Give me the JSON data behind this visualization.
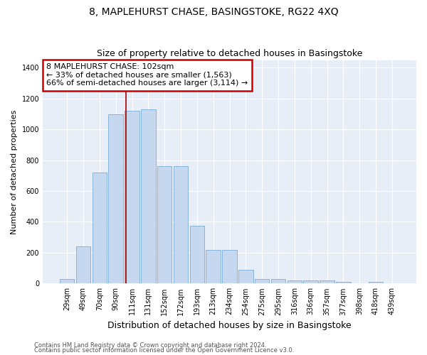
{
  "title": "8, MAPLEHURST CHASE, BASINGSTOKE, RG22 4XQ",
  "subtitle": "Size of property relative to detached houses in Basingstoke",
  "xlabel": "Distribution of detached houses by size in Basingstoke",
  "ylabel": "Number of detached properties",
  "categories": [
    "29sqm",
    "49sqm",
    "70sqm",
    "90sqm",
    "111sqm",
    "131sqm",
    "152sqm",
    "172sqm",
    "193sqm",
    "213sqm",
    "234sqm",
    "254sqm",
    "275sqm",
    "295sqm",
    "316sqm",
    "336sqm",
    "357sqm",
    "377sqm",
    "398sqm",
    "418sqm",
    "439sqm"
  ],
  "values": [
    28,
    240,
    720,
    1100,
    1120,
    1130,
    760,
    760,
    375,
    220,
    220,
    90,
    30,
    30,
    20,
    20,
    20,
    10,
    0,
    10,
    0
  ],
  "bar_color": "#c5d8f0",
  "bar_edgecolor": "#7aadd6",
  "vline_color": "#aa0000",
  "vline_x_index": 3.62,
  "annotation_text": "8 MAPLEHURST CHASE: 102sqm\n← 33% of detached houses are smaller (1,563)\n66% of semi-detached houses are larger (3,114) →",
  "annotation_box_color": "#ffffff",
  "annotation_box_edgecolor": "#cc0000",
  "ylim": [
    0,
    1450
  ],
  "yticks": [
    0,
    200,
    400,
    600,
    800,
    1000,
    1200,
    1400
  ],
  "footer1": "Contains HM Land Registry data © Crown copyright and database right 2024.",
  "footer2": "Contains public sector information licensed under the Open Government Licence v3.0.",
  "plot_bg_color": "#e8eef8",
  "fig_bg_color": "#ffffff",
  "title_fontsize": 10,
  "xlabel_fontsize": 9,
  "ylabel_fontsize": 8,
  "tick_fontsize": 7,
  "annotation_fontsize": 8,
  "footer_fontsize": 6
}
